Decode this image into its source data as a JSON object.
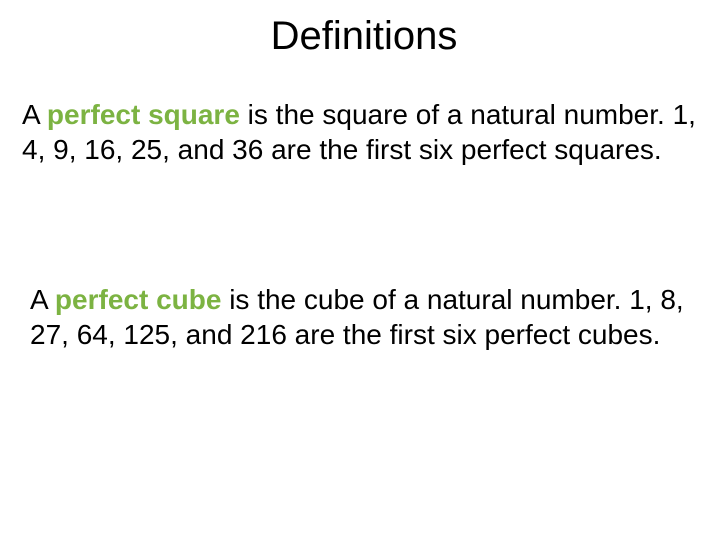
{
  "title": "Definitions",
  "definition1": {
    "prefix": "A ",
    "term": "perfect square ",
    "body": "is the square of a natural number.  1, 4, 9, 16, 25, and 36 are the first six perfect squares."
  },
  "definition2": {
    "prefix": "A ",
    "term": "perfect cube ",
    "body": "is the cube of a natural number.  1, 8, 27, 64, 125, and 216 are the first six perfect cubes."
  },
  "colors": {
    "background": "#ffffff",
    "text": "#000000",
    "highlight": "#7cb342"
  },
  "typography": {
    "title_fontsize": 40,
    "body_fontsize": 28,
    "font_family": "Arial"
  }
}
